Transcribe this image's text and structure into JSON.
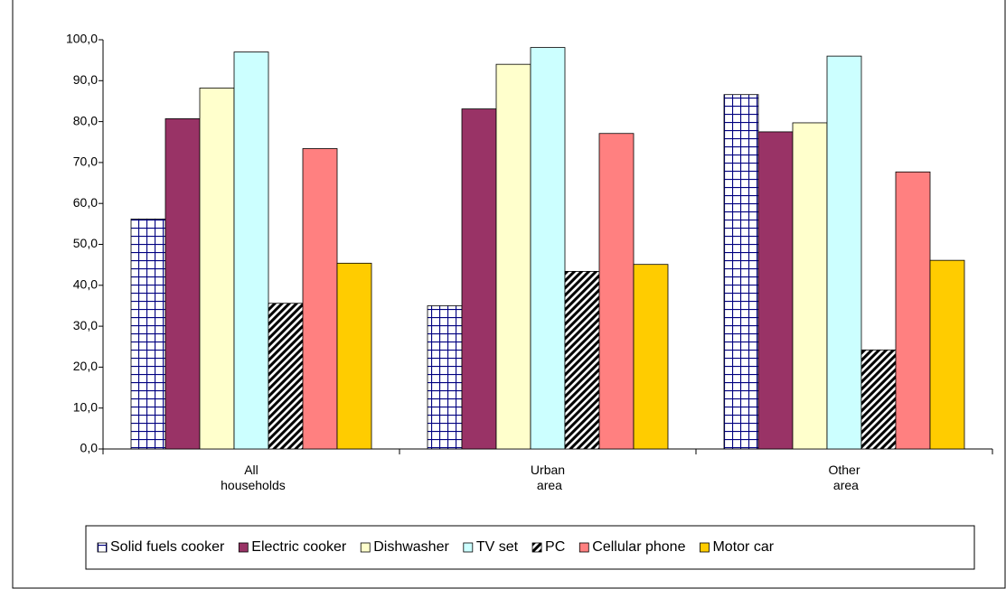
{
  "chart_data": {
    "type": "bar",
    "categories": [
      "All households",
      "Urban area",
      "Other area"
    ],
    "series": [
      {
        "name": "Solid fuels cooker",
        "color": "#000080",
        "pattern": "grid",
        "values": [
          56.2,
          35.0,
          86.6
        ]
      },
      {
        "name": "Electric cooker",
        "color": "#993366",
        "values": [
          80.7,
          83.1,
          77.5
        ]
      },
      {
        "name": "Dishwasher",
        "color": "#ffffcc",
        "values": [
          88.2,
          94.0,
          79.7
        ]
      },
      {
        "name": "TV set",
        "color": "#ccffff",
        "values": [
          97.0,
          98.1,
          96.0
        ]
      },
      {
        "name": "PC",
        "color": "#000000",
        "pattern": "diagonal",
        "values": [
          35.6,
          43.4,
          24.2
        ]
      },
      {
        "name": "Cellular phone",
        "color": "#ff8080",
        "values": [
          73.4,
          77.1,
          67.7
        ]
      },
      {
        "name": "Motor car",
        "color": "#ffcc00",
        "values": [
          45.4,
          45.1,
          46.1
        ]
      }
    ],
    "ylim": [
      0,
      100
    ],
    "yticks": [
      {
        "value": 0,
        "label": "0,0"
      },
      {
        "value": 10,
        "label": "10,0"
      },
      {
        "value": 20,
        "label": "20,0"
      },
      {
        "value": 30,
        "label": "30,0"
      },
      {
        "value": 40,
        "label": "40,0"
      },
      {
        "value": 50,
        "label": "50,0"
      },
      {
        "value": 60,
        "label": "60,0"
      },
      {
        "value": 70,
        "label": "70,0"
      },
      {
        "value": 80,
        "label": "80,0"
      },
      {
        "value": 90,
        "label": "90,0"
      },
      {
        "value": 100,
        "label": "100,0"
      }
    ],
    "grid": false,
    "legend": "bottom"
  }
}
